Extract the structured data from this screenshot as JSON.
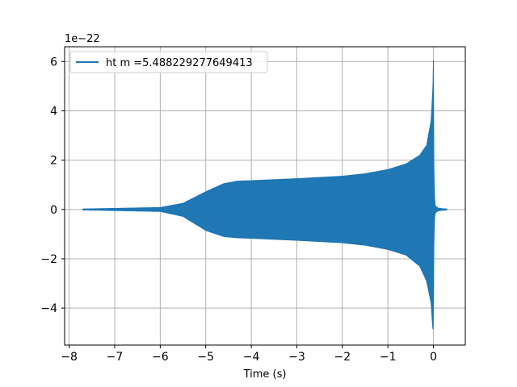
{
  "chart_data": {
    "type": "line",
    "title": "",
    "xlabel": "Time (s)",
    "ylabel": "",
    "y_offset_label": "1e−22",
    "xlim": [
      -8.1,
      0.7
    ],
    "ylim": [
      -5.5,
      6.6
    ],
    "xticks": [
      -8,
      -7,
      -6,
      -5,
      -4,
      -3,
      -2,
      -1,
      0
    ],
    "xtick_labels": [
      "−8",
      "−7",
      "−6",
      "−5",
      "−4",
      "−3",
      "−2",
      "−1",
      "0"
    ],
    "yticks": [
      -4,
      -2,
      0,
      2,
      4,
      6
    ],
    "ytick_labels": [
      "−4",
      "−2",
      "0",
      "2",
      "4",
      "6"
    ],
    "grid": true,
    "legend_location": "upper-left",
    "series": [
      {
        "name": "ht m =5.488229277649413",
        "color": "#1f77b4",
        "x_range": [
          -7.7,
          0.3
        ],
        "upper_envelope": {
          "t": [
            -7.7,
            -6.0,
            -5.5,
            -5.0,
            -4.6,
            -4.3,
            -4.0,
            -3.0,
            -2.0,
            -1.5,
            -1.0,
            -0.6,
            -0.3,
            -0.15,
            -0.05,
            -0.01,
            0.0,
            0.01,
            0.03,
            0.05,
            0.1,
            0.2,
            0.3
          ],
          "v": [
            0.02,
            0.08,
            0.25,
            0.72,
            1.05,
            1.15,
            1.17,
            1.25,
            1.35,
            1.45,
            1.62,
            1.85,
            2.2,
            2.6,
            3.6,
            5.0,
            6.05,
            1.5,
            0.25,
            0.12,
            0.06,
            0.03,
            0.02
          ]
        },
        "lower_envelope": {
          "t": [
            -7.7,
            -6.0,
            -5.5,
            -5.0,
            -4.6,
            -4.3,
            -4.0,
            -3.0,
            -2.0,
            -1.5,
            -1.0,
            -0.6,
            -0.3,
            -0.15,
            -0.05,
            -0.01,
            0.0,
            0.01,
            0.03,
            0.05,
            0.1,
            0.2,
            0.3
          ],
          "v": [
            -0.02,
            -0.08,
            -0.28,
            -0.85,
            -1.1,
            -1.15,
            -1.17,
            -1.25,
            -1.35,
            -1.45,
            -1.62,
            -1.85,
            -2.3,
            -2.9,
            -3.8,
            -4.95,
            -4.2,
            -1.2,
            -0.2,
            -0.12,
            -0.06,
            -0.03,
            -0.02
          ]
        }
      }
    ]
  }
}
